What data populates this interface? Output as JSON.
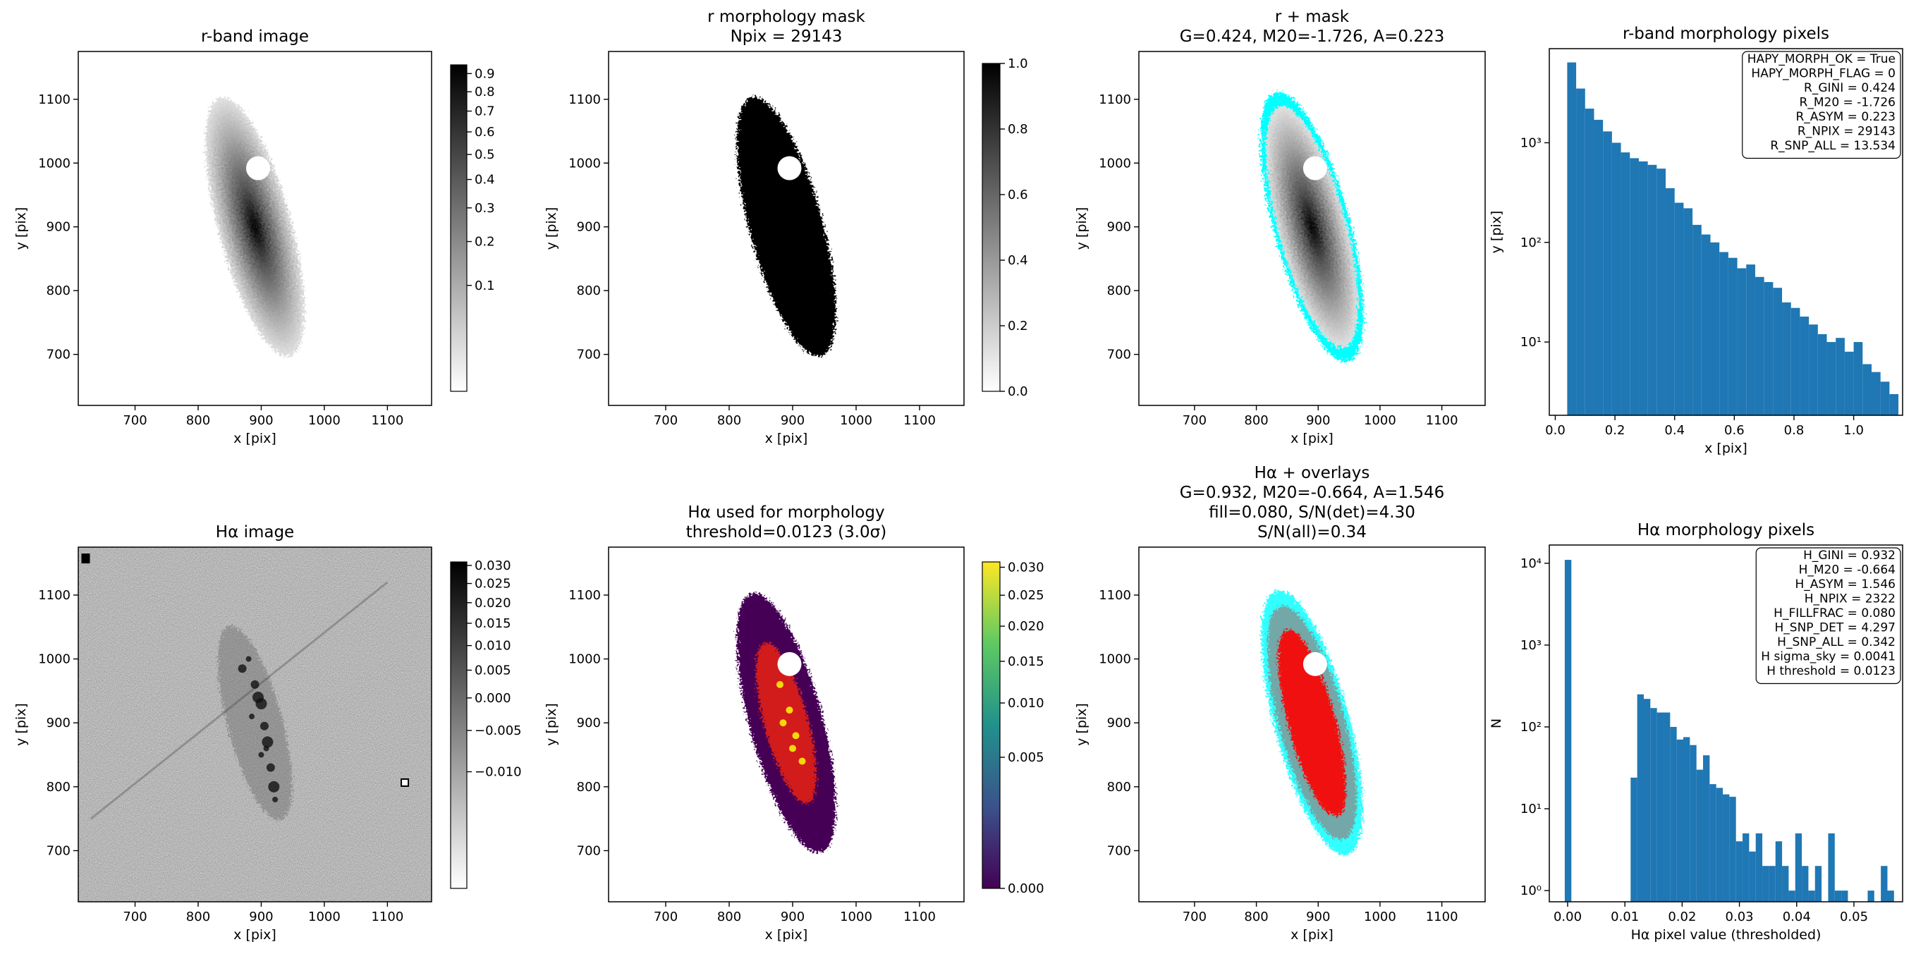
{
  "chart_data": [
    {
      "type": "image",
      "title": [
        "r-band image"
      ],
      "xlabel": "x [pix]",
      "ylabel": "y [pix]",
      "xlim": [
        610,
        1170
      ],
      "ylim": [
        620,
        1175
      ],
      "xticks": [
        700,
        800,
        900,
        1000,
        1100
      ],
      "yticks": [
        700,
        800,
        900,
        1000,
        1100
      ],
      "colorbar": {
        "cmap": "gray_r",
        "scale": "sqrt",
        "clim": [
          0,
          0.95
        ],
        "ticks": [
          0.1,
          0.2,
          0.3,
          0.4,
          0.5,
          0.6,
          0.7,
          0.8,
          0.9
        ]
      }
    },
    {
      "type": "image",
      "title": [
        "r morphology mask",
        "Npix = 29143"
      ],
      "xlabel": "x [pix]",
      "ylabel": "y [pix]",
      "xlim": [
        610,
        1170
      ],
      "ylim": [
        620,
        1175
      ],
      "xticks": [
        700,
        800,
        900,
        1000,
        1100
      ],
      "yticks": [
        700,
        800,
        900,
        1000,
        1100
      ],
      "colorbar": {
        "cmap": "gray_r",
        "scale": "linear",
        "clim": [
          0,
          1
        ],
        "ticks": [
          {
            "value": 0,
            "label": "0.0"
          },
          0.2,
          0.4,
          0.6,
          0.8,
          {
            "value": 1,
            "label": "1.0"
          }
        ]
      }
    },
    {
      "type": "image",
      "title": [
        "r + mask",
        "G=0.424, M20=-1.726, A=0.223"
      ],
      "xlabel": "x [pix]",
      "ylabel": "y [pix]",
      "xlim": [
        610,
        1170
      ],
      "ylim": [
        620,
        1175
      ],
      "xticks": [
        700,
        800,
        900,
        1000,
        1100
      ],
      "yticks": [
        700,
        800,
        900,
        1000,
        1100
      ],
      "overlay_colors": [
        "cyan"
      ]
    },
    {
      "type": "histogram",
      "title": [
        "r-band morphology pixels"
      ],
      "xlabel": "x [pix]",
      "ylabel": "y [pix]",
      "color": "#1f77b4",
      "log_y": true,
      "xlim": [
        -0.02,
        1.164
      ],
      "ylim": [
        1.84,
        8800
      ],
      "xticks": [
        {
          "value": 0,
          "label": "0.0"
        },
        0.2,
        0.4,
        0.6,
        0.8,
        {
          "value": 1,
          "label": "1.0"
        }
      ],
      "yticks": [
        {
          "value": 10,
          "label": "10¹"
        },
        {
          "value": 100,
          "label": "10²"
        },
        {
          "value": 1000,
          "label": "10³"
        }
      ],
      "bins": [
        0.04,
        0.07,
        0.1,
        0.13,
        0.16,
        0.19,
        0.22,
        0.25,
        0.28,
        0.31,
        0.34,
        0.37,
        0.4,
        0.43,
        0.46,
        0.49,
        0.52,
        0.55,
        0.58,
        0.61,
        0.64,
        0.67,
        0.7,
        0.73,
        0.76,
        0.79,
        0.82,
        0.85,
        0.88,
        0.91,
        0.94,
        0.97,
        1.0,
        1.03,
        1.06,
        1.09,
        1.12,
        1.15
      ],
      "values": [
        6400,
        3500,
        2200,
        1700,
        1300,
        1000,
        800,
        700,
        650,
        600,
        550,
        350,
        250,
        220,
        150,
        120,
        100,
        80,
        70,
        55,
        60,
        45,
        40,
        35,
        25,
        22,
        18,
        15,
        12,
        10,
        11,
        8,
        10,
        6,
        5,
        4,
        3
      ],
      "annotation": [
        "HAPY_MORPH_OK = True",
        "HAPY_MORPH_FLAG = 0",
        "R_GINI = 0.424",
        "R_M20 = -1.726",
        "R_ASYM = 0.223",
        "R_NPIX = 29143",
        "R_SNP_ALL = 13.534"
      ]
    },
    {
      "type": "image",
      "title": [
        "Hα image"
      ],
      "xlabel": "x [pix]",
      "ylabel": "y [pix]",
      "xlim": [
        610,
        1170
      ],
      "ylim": [
        620,
        1175
      ],
      "xticks": [
        700,
        800,
        900,
        1000,
        1100
      ],
      "yticks": [
        700,
        800,
        900,
        1000,
        1100
      ],
      "colorbar": {
        "cmap": "gray_r",
        "scale": "sqrt",
        "clim": [
          -0.016,
          0.031
        ],
        "ticks": [
          {
            "value": -0.01,
            "label": "−0.010"
          },
          {
            "value": -0.005,
            "label": "−0.005"
          },
          {
            "value": 0,
            "label": "0.000"
          },
          {
            "value": 0.005,
            "label": "0.005"
          },
          {
            "value": 0.01,
            "label": "0.010"
          },
          {
            "value": 0.015,
            "label": "0.015"
          },
          {
            "value": 0.02,
            "label": "0.020"
          },
          {
            "value": 0.025,
            "label": "0.025"
          },
          {
            "value": 0.03,
            "label": "0.030"
          }
        ]
      }
    },
    {
      "type": "image",
      "title": [
        "Hα used for morphology",
        "threshold=0.0123 (3.0σ)"
      ],
      "xlabel": "x [pix]",
      "ylabel": "y [pix]",
      "xlim": [
        610,
        1170
      ],
      "ylim": [
        620,
        1175
      ],
      "xticks": [
        700,
        800,
        900,
        1000,
        1100
      ],
      "yticks": [
        700,
        800,
        900,
        1000,
        1100
      ],
      "colorbar": {
        "cmap": "viridis",
        "scale": "sqrt",
        "clim": [
          0,
          0.031
        ],
        "ticks": [
          {
            "value": 0,
            "label": "0.000"
          },
          {
            "value": 0.005,
            "label": "0.005"
          },
          {
            "value": 0.01,
            "label": "0.010"
          },
          {
            "value": 0.015,
            "label": "0.015"
          },
          {
            "value": 0.02,
            "label": "0.020"
          },
          {
            "value": 0.025,
            "label": "0.025"
          },
          {
            "value": 0.03,
            "label": "0.030"
          }
        ]
      }
    },
    {
      "type": "image",
      "title": [
        "Hα + overlays",
        "G=0.932, M20=-0.664, A=1.546",
        "fill=0.080, S/N(det)=4.30",
        "S/N(all)=0.34"
      ],
      "xlabel": "x [pix]",
      "ylabel": "y [pix]",
      "xlim": [
        610,
        1170
      ],
      "ylim": [
        620,
        1175
      ],
      "xticks": [
        700,
        800,
        900,
        1000,
        1100
      ],
      "yticks": [
        700,
        800,
        900,
        1000,
        1100
      ],
      "overlay_colors": [
        "cyan",
        "red"
      ]
    },
    {
      "type": "histogram",
      "title": [
        "Hα morphology pixels"
      ],
      "xlabel": "Hα pixel value (thresholded)",
      "ylabel": "N",
      "color": "#1f77b4",
      "log_y": true,
      "xlim": [
        -0.0032,
        0.0585
      ],
      "ylim": [
        0.73,
        16700
      ],
      "xticks": [
        {
          "value": 0,
          "label": "0.00"
        },
        {
          "value": 0.01,
          "label": "0.01"
        },
        {
          "value": 0.02,
          "label": "0.02"
        },
        {
          "value": 0.03,
          "label": "0.03"
        },
        {
          "value": 0.04,
          "label": "0.04"
        },
        {
          "value": 0.05,
          "label": "0.05"
        }
      ],
      "yticks": [
        {
          "value": 1,
          "label": "10⁰"
        },
        {
          "value": 10,
          "label": "10¹"
        },
        {
          "value": 100,
          "label": "10²"
        },
        {
          "value": 1000,
          "label": "10³"
        },
        {
          "value": 10000,
          "label": "10⁴"
        }
      ],
      "bins": [
        -0.0005,
        0.00065,
        0.0018,
        0.00295,
        0.0041,
        0.00525,
        0.0064,
        0.00755,
        0.0087,
        0.00985,
        0.011,
        0.01215,
        0.0133,
        0.01445,
        0.0156,
        0.01675,
        0.0179,
        0.01905,
        0.0202,
        0.02135,
        0.0225,
        0.02365,
        0.0248,
        0.02595,
        0.0271,
        0.02825,
        0.0294,
        0.03055,
        0.0317,
        0.03285,
        0.034,
        0.03515,
        0.0363,
        0.03745,
        0.0386,
        0.03975,
        0.0409,
        0.04205,
        0.0432,
        0.04435,
        0.0455,
        0.04665,
        0.0478,
        0.04895,
        0.0501,
        0.05125,
        0.0524,
        0.05355,
        0.0547,
        0.05585,
        0.057
      ],
      "values": [
        11000,
        0,
        0,
        0,
        0,
        0,
        0,
        0,
        0,
        0,
        24,
        250,
        220,
        170,
        150,
        150,
        100,
        70,
        75,
        60,
        30,
        45,
        20,
        18,
        15,
        14,
        4,
        5,
        3,
        5,
        2,
        2,
        4,
        2,
        1,
        5,
        2,
        1,
        2,
        0,
        5,
        1,
        1,
        0,
        0,
        0,
        1,
        0,
        2,
        1
      ],
      "annotation": [
        "H_GINI = 0.932",
        "H_M20 = -0.664",
        "H_ASYM = 1.546",
        "H_NPIX = 2322",
        "H_FILLFRAC = 0.080",
        "H_SNP_DET = 4.297",
        "H_SNP_ALL = 0.342",
        "H sigma_sky = 0.0041",
        "H threshold = 0.0123"
      ]
    }
  ]
}
